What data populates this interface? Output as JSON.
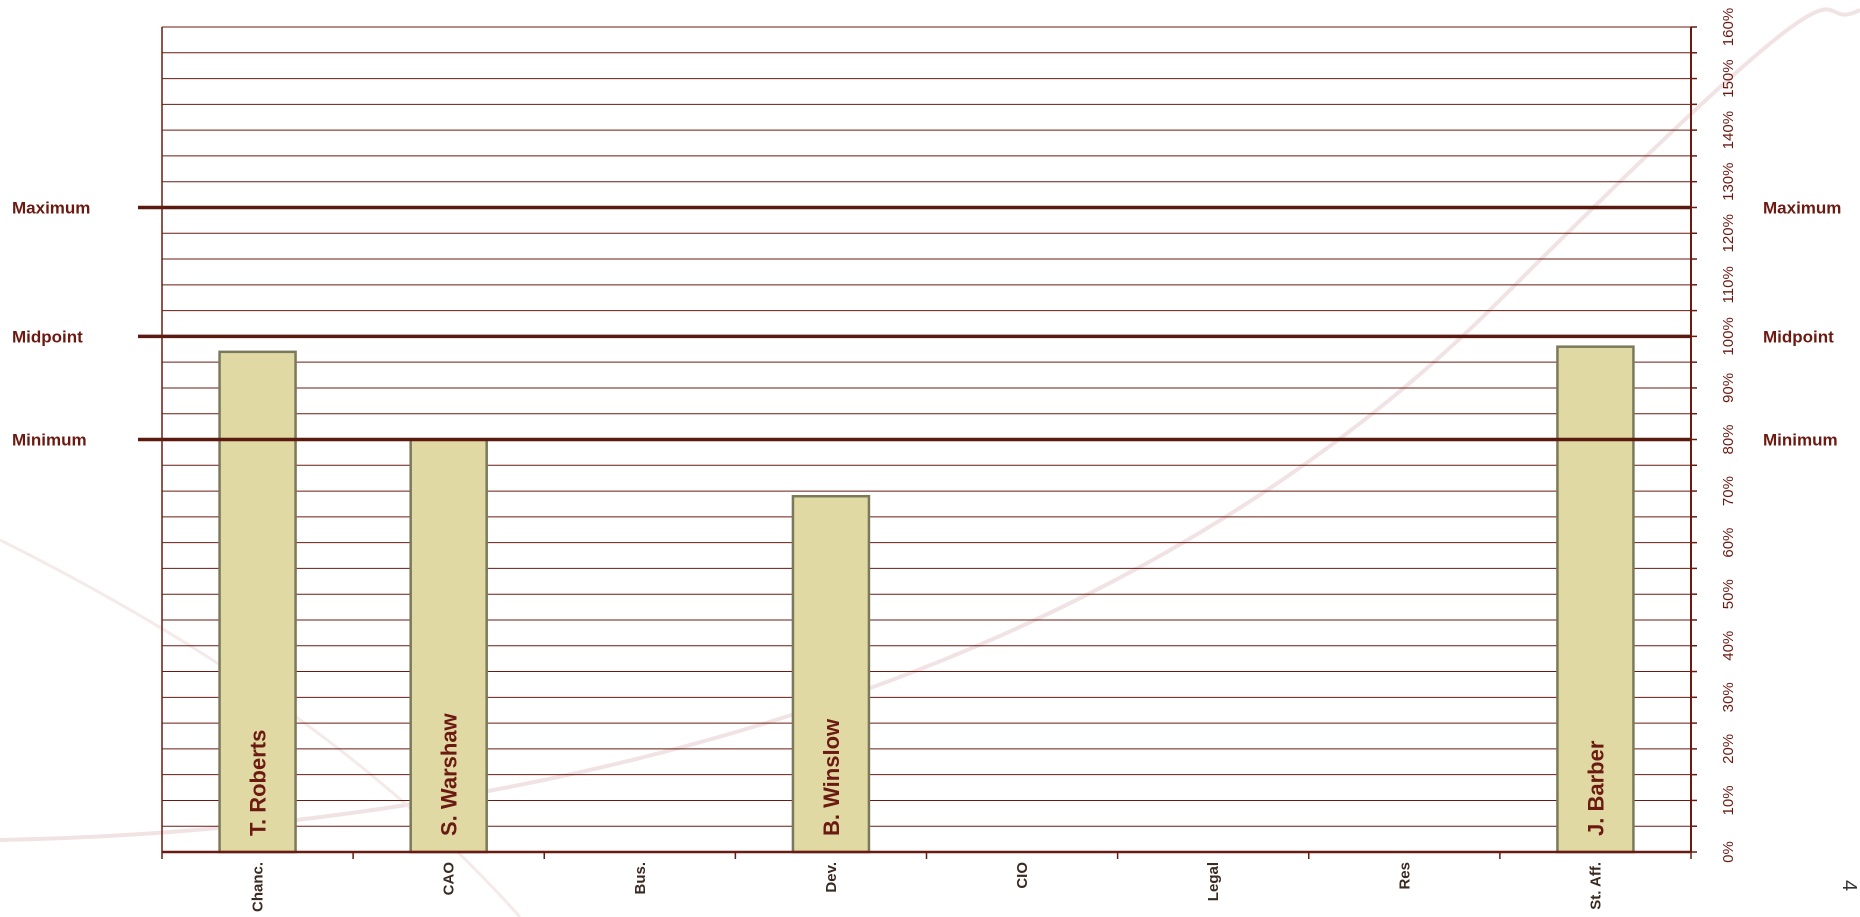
{
  "chart_data": {
    "type": "bar",
    "categories": [
      "Chanc.",
      "CAO",
      "Bus.",
      "Dev.",
      "CIO",
      "Legal",
      "Res",
      "St. Aff."
    ],
    "values": [
      97,
      80,
      null,
      69,
      null,
      null,
      null,
      98
    ],
    "bar_labels": [
      "T. Roberts",
      "S. Warshaw",
      "",
      "B. Winslow",
      "",
      "",
      "",
      "J. Barber"
    ],
    "ylim": [
      0,
      160
    ],
    "y_ticks": [
      "0%",
      "10%",
      "20%",
      "30%",
      "40%",
      "50%",
      "60%",
      "70%",
      "80%",
      "90%",
      "100%",
      "110%",
      "120%",
      "130%",
      "140%",
      "150%",
      "160%"
    ],
    "y_axis_side": "right",
    "grid": true,
    "reference_lines": [
      {
        "label": "Maximum",
        "value": 125
      },
      {
        "label": "Midpoint",
        "value": 100
      },
      {
        "label": "Minimum",
        "value": 80
      }
    ],
    "colors": {
      "bar": "#e0d9a4",
      "bar_edge": "#7a7a5a",
      "axis": "#6b1a12",
      "reference": "#5a1a10"
    }
  },
  "page_number": "4"
}
